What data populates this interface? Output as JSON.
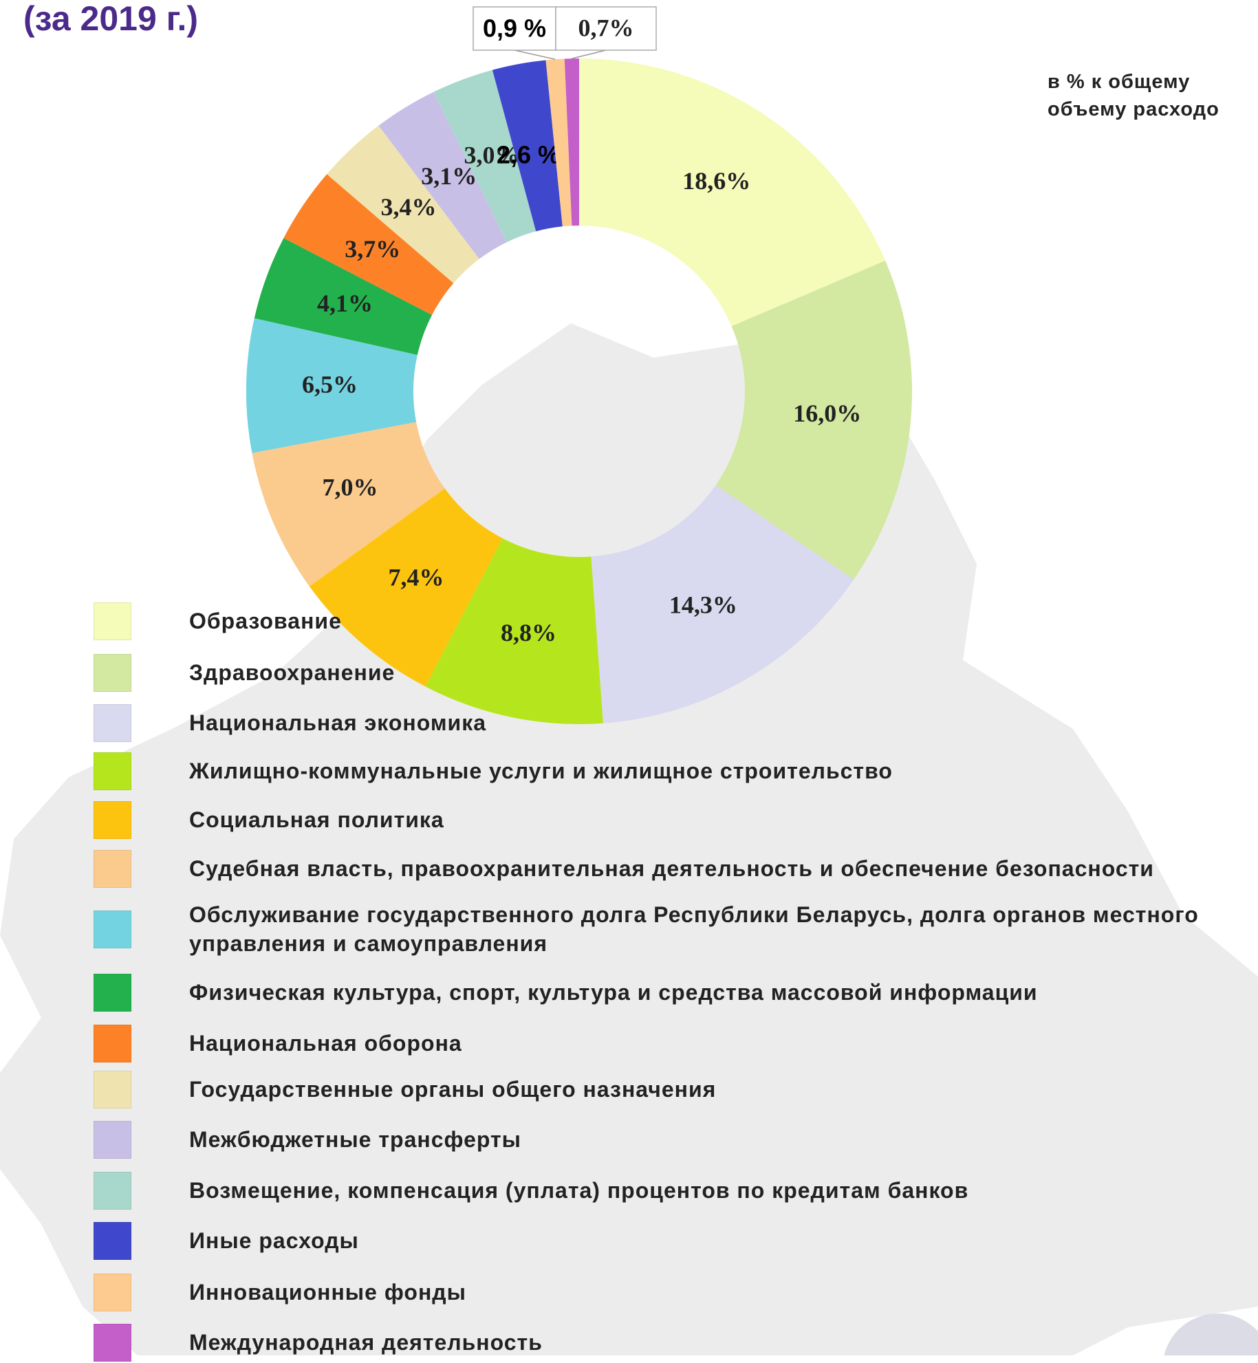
{
  "chart_data": {
    "type": "donut",
    "title": "(за 2019 г.)",
    "note": [
      "в % к общему",
      "объему расходо"
    ],
    "categories": [
      "Образование",
      "Здравоохранение",
      "Национальная экономика",
      "Жилищно-коммунальные услуги и жилищное строительство",
      "Социальная политика",
      "Судебная власть, правоохранительная деятельность и обеспечение безопасности",
      "Обслуживание государственного долга Республики Беларусь, долга органов местного управления и самоуправления",
      "Физическая культура, спорт, культура и средства массовой информации",
      "Национальная оборона",
      "Государственные органы общего назначения",
      "Межбюджетные трансферты",
      "Возмещение, компенсация (уплата) процентов по кредитам банков",
      "Иные расходы",
      "Инновационные фонды",
      "Международная деятельность"
    ],
    "values": [
      18.6,
      16.0,
      14.3,
      8.8,
      7.4,
      7.0,
      6.5,
      4.1,
      3.7,
      3.4,
      3.1,
      3.0,
      2.6,
      0.9,
      0.7
    ],
    "value_labels": [
      "18,6%",
      "16,0%",
      "14,3%",
      "8,8%",
      "7,4%",
      "7,0%",
      "6,5%",
      "4,1%",
      "3,7%",
      "3,4%",
      "3,1%",
      "3,0%",
      "2,6 %",
      "0,9 %",
      "0,7%"
    ],
    "colors": [
      "#f5fbb9",
      "#d3e8a0",
      "#d9d9ef",
      "#b5e61d",
      "#fdc40f",
      "#fbcb8e",
      "#74d3e0",
      "#22b14c",
      "#fd8227",
      "#efe4b0",
      "#c8bfe7",
      "#a8d8cc",
      "#3f48cc",
      "#fdcb8f",
      "#c45fc9"
    ]
  }
}
